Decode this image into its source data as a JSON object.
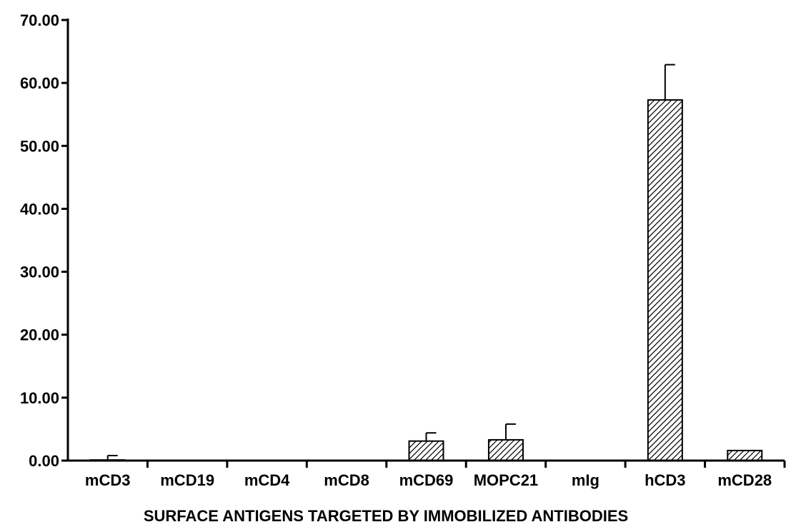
{
  "chart_data": {
    "type": "bar",
    "title": "",
    "xlabel": "SURFACE ANTIGENS TARGETED BY IMMOBILIZED ANTIBODIES",
    "ylabel": "",
    "ylim": [
      0,
      70
    ],
    "yticks": [
      "0.00",
      "10.00",
      "20.00",
      "30.00",
      "40.00",
      "50.00",
      "60.00",
      "70.00"
    ],
    "categories": [
      "mCD3",
      "mCD19",
      "mCD4",
      "mCD8",
      "mCD69",
      "MOPC21",
      "mIg",
      "hCD3",
      "mCD28"
    ],
    "values": [
      0.1,
      0,
      0,
      0,
      3.1,
      3.3,
      0,
      57.3,
      1.6
    ],
    "errors": [
      0.7,
      0,
      0,
      0,
      1.3,
      2.5,
      0,
      5.6,
      0
    ],
    "bar_fill": "hatched",
    "bar_color": "#000000",
    "grid": false,
    "legend": "none"
  }
}
